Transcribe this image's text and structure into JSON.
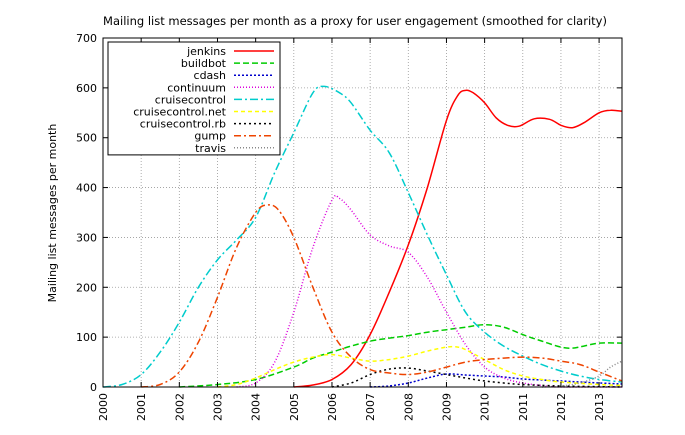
{
  "chart_data": {
    "type": "line",
    "title": "Mailing list messages per month as a proxy for user engagement (smoothed for clarity)",
    "xlabel": "",
    "ylabel": "Mailing list messages per month",
    "xlim": [
      2000,
      2013.6
    ],
    "ylim": [
      0,
      700
    ],
    "xticks": [
      "2000",
      "2001",
      "2002",
      "2003",
      "2004",
      "2005",
      "2006",
      "2007",
      "2008",
      "2009",
      "2010",
      "2011",
      "2012",
      "2013"
    ],
    "yticks": [
      "0",
      "100",
      "200",
      "300",
      "400",
      "500",
      "600",
      "700"
    ],
    "grid": true,
    "legend": "top-left",
    "series": [
      {
        "name": "jenkins",
        "color": "#ff0000",
        "dash": "",
        "points": [
          [
            2005.0,
            0
          ],
          [
            2005.5,
            4
          ],
          [
            2006.0,
            15
          ],
          [
            2006.5,
            45
          ],
          [
            2007.0,
            105
          ],
          [
            2007.5,
            190
          ],
          [
            2008.0,
            285
          ],
          [
            2008.5,
            400
          ],
          [
            2009.0,
            535
          ],
          [
            2009.3,
            585
          ],
          [
            2009.5,
            595
          ],
          [
            2009.7,
            590
          ],
          [
            2010.0,
            570
          ],
          [
            2010.3,
            540
          ],
          [
            2010.6,
            525
          ],
          [
            2010.9,
            523
          ],
          [
            2011.3,
            538
          ],
          [
            2011.7,
            537
          ],
          [
            2012.0,
            525
          ],
          [
            2012.3,
            520
          ],
          [
            2012.6,
            530
          ],
          [
            2013.0,
            550
          ],
          [
            2013.3,
            555
          ],
          [
            2013.6,
            553
          ]
        ]
      },
      {
        "name": "buildbot",
        "color": "#00cc00",
        "dash": "6,3",
        "points": [
          [
            2002.0,
            0
          ],
          [
            2003.0,
            5
          ],
          [
            2004.0,
            15
          ],
          [
            2005.0,
            40
          ],
          [
            2005.5,
            58
          ],
          [
            2006.0,
            70
          ],
          [
            2006.5,
            82
          ],
          [
            2007.0,
            92
          ],
          [
            2007.5,
            98
          ],
          [
            2008.0,
            103
          ],
          [
            2008.5,
            110
          ],
          [
            2009.0,
            115
          ],
          [
            2009.5,
            120
          ],
          [
            2010.0,
            125
          ],
          [
            2010.5,
            120
          ],
          [
            2011.0,
            105
          ],
          [
            2011.5,
            92
          ],
          [
            2012.0,
            80
          ],
          [
            2012.3,
            78
          ],
          [
            2012.6,
            82
          ],
          [
            2013.0,
            88
          ],
          [
            2013.6,
            88
          ]
        ]
      },
      {
        "name": "cdash",
        "color": "#0000cc",
        "dash": "2,2",
        "points": [
          [
            2007.0,
            0
          ],
          [
            2007.5,
            2
          ],
          [
            2008.0,
            8
          ],
          [
            2008.5,
            18
          ],
          [
            2009.0,
            26
          ],
          [
            2009.5,
            24
          ],
          [
            2010.0,
            22
          ],
          [
            2010.5,
            20
          ],
          [
            2011.0,
            16
          ],
          [
            2011.5,
            14
          ],
          [
            2012.0,
            12
          ],
          [
            2012.5,
            10
          ],
          [
            2013.0,
            8
          ],
          [
            2013.6,
            6
          ]
        ]
      },
      {
        "name": "continuum",
        "color": "#dd00dd",
        "dash": "1,2",
        "points": [
          [
            2003.5,
            0
          ],
          [
            2004.0,
            8
          ],
          [
            2004.5,
            50
          ],
          [
            2005.0,
            150
          ],
          [
            2005.5,
            280
          ],
          [
            2006.0,
            375
          ],
          [
            2006.2,
            378
          ],
          [
            2006.5,
            355
          ],
          [
            2007.0,
            305
          ],
          [
            2007.5,
            283
          ],
          [
            2008.0,
            270
          ],
          [
            2008.5,
            220
          ],
          [
            2009.0,
            150
          ],
          [
            2009.5,
            85
          ],
          [
            2010.0,
            40
          ],
          [
            2010.5,
            18
          ],
          [
            2011.0,
            8
          ],
          [
            2011.5,
            3
          ],
          [
            2012.0,
            0
          ],
          [
            2013.6,
            0
          ]
        ]
      },
      {
        "name": "cruisecontrol",
        "color": "#00cccc",
        "dash": "8,3,2,3",
        "points": [
          [
            2000.0,
            0
          ],
          [
            2000.5,
            5
          ],
          [
            2001.0,
            25
          ],
          [
            2001.5,
            70
          ],
          [
            2002.0,
            130
          ],
          [
            2002.5,
            200
          ],
          [
            2003.0,
            255
          ],
          [
            2003.5,
            295
          ],
          [
            2004.0,
            340
          ],
          [
            2004.5,
            430
          ],
          [
            2005.0,
            510
          ],
          [
            2005.5,
            590
          ],
          [
            2005.8,
            603
          ],
          [
            2006.2,
            590
          ],
          [
            2006.5,
            570
          ],
          [
            2007.0,
            515
          ],
          [
            2007.5,
            470
          ],
          [
            2008.0,
            390
          ],
          [
            2008.5,
            305
          ],
          [
            2009.0,
            225
          ],
          [
            2009.5,
            150
          ],
          [
            2010.0,
            110
          ],
          [
            2010.5,
            82
          ],
          [
            2011.0,
            62
          ],
          [
            2011.5,
            45
          ],
          [
            2012.0,
            32
          ],
          [
            2012.5,
            22
          ],
          [
            2013.0,
            15
          ],
          [
            2013.6,
            10
          ]
        ]
      },
      {
        "name": "cruisecontrol.net",
        "color": "#ffff00",
        "dash": "4,3",
        "points": [
          [
            2003.0,
            0
          ],
          [
            2003.5,
            5
          ],
          [
            2004.0,
            18
          ],
          [
            2004.5,
            35
          ],
          [
            2005.0,
            50
          ],
          [
            2005.5,
            60
          ],
          [
            2006.0,
            65
          ],
          [
            2006.5,
            58
          ],
          [
            2007.0,
            52
          ],
          [
            2007.5,
            55
          ],
          [
            2008.0,
            62
          ],
          [
            2008.5,
            72
          ],
          [
            2009.0,
            80
          ],
          [
            2009.3,
            80
          ],
          [
            2009.5,
            75
          ],
          [
            2010.0,
            55
          ],
          [
            2010.5,
            35
          ],
          [
            2011.0,
            22
          ],
          [
            2011.5,
            15
          ],
          [
            2012.0,
            10
          ],
          [
            2013.0,
            5
          ],
          [
            2013.6,
            3
          ]
        ]
      },
      {
        "name": "cruisecontrol.rb",
        "color": "#000000",
        "dash": "2,3",
        "points": [
          [
            2006.0,
            0
          ],
          [
            2006.5,
            8
          ],
          [
            2007.0,
            25
          ],
          [
            2007.5,
            36
          ],
          [
            2008.0,
            38
          ],
          [
            2008.5,
            32
          ],
          [
            2009.0,
            25
          ],
          [
            2009.5,
            18
          ],
          [
            2010.0,
            12
          ],
          [
            2010.5,
            8
          ],
          [
            2011.0,
            5
          ],
          [
            2012.0,
            2
          ],
          [
            2013.6,
            0
          ]
        ]
      },
      {
        "name": "gump",
        "color": "#ee4400",
        "dash": "7,3,2,3",
        "points": [
          [
            2001.0,
            0
          ],
          [
            2001.5,
            5
          ],
          [
            2002.0,
            30
          ],
          [
            2002.5,
            90
          ],
          [
            2003.0,
            180
          ],
          [
            2003.5,
            280
          ],
          [
            2004.0,
            350
          ],
          [
            2004.3,
            365
          ],
          [
            2004.6,
            355
          ],
          [
            2005.0,
            300
          ],
          [
            2005.5,
            200
          ],
          [
            2006.0,
            110
          ],
          [
            2006.5,
            60
          ],
          [
            2007.0,
            35
          ],
          [
            2007.5,
            28
          ],
          [
            2008.0,
            25
          ],
          [
            2008.5,
            30
          ],
          [
            2009.0,
            40
          ],
          [
            2009.5,
            50
          ],
          [
            2010.0,
            55
          ],
          [
            2010.5,
            58
          ],
          [
            2011.0,
            60
          ],
          [
            2011.5,
            58
          ],
          [
            2012.0,
            52
          ],
          [
            2012.5,
            45
          ],
          [
            2013.0,
            30
          ],
          [
            2013.6,
            12
          ]
        ]
      },
      {
        "name": "travis",
        "color": "#888888",
        "dash": "1,2",
        "points": [
          [
            2011.5,
            0
          ],
          [
            2012.0,
            2
          ],
          [
            2012.5,
            8
          ],
          [
            2013.0,
            22
          ],
          [
            2013.3,
            40
          ],
          [
            2013.6,
            52
          ]
        ]
      }
    ]
  }
}
